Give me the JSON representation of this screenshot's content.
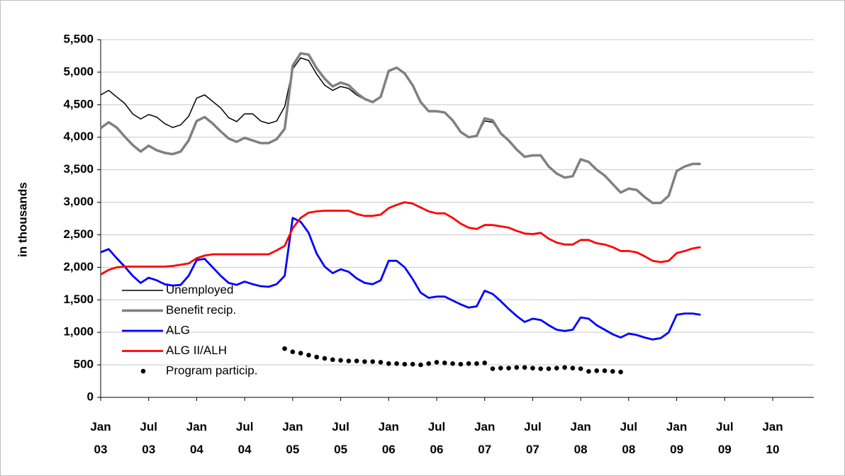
{
  "chart_data": {
    "type": "line",
    "y_label": "in thousands",
    "categories": [
      "Jan 03",
      null,
      null,
      null,
      null,
      null,
      "Jul 03",
      null,
      null,
      null,
      null,
      null,
      "Jan 04",
      null,
      null,
      null,
      null,
      null,
      "Jul 04",
      null,
      null,
      null,
      null,
      null,
      "Jan 05",
      null,
      null,
      null,
      null,
      null,
      "Jul 05",
      null,
      null,
      null,
      null,
      null,
      "Jan 06",
      null,
      null,
      null,
      null,
      null,
      "Jul 06",
      null,
      null,
      null,
      null,
      null,
      "Jan 07",
      null,
      null,
      null,
      null,
      null,
      "Jul 07",
      null,
      null,
      null,
      null,
      null,
      "Jan 08",
      null,
      null,
      null,
      null,
      null,
      "Jul 08",
      null,
      null,
      null,
      null,
      null,
      "Jan 09",
      null,
      null,
      null,
      null,
      null,
      "Jul 09",
      null,
      null,
      null,
      null,
      null,
      "Jan 10"
    ],
    "series": [
      {
        "name": "Unemployed",
        "color": "#000000",
        "style": "line",
        "values": [
          4650,
          4720,
          4620,
          4520,
          4360,
          4280,
          4350,
          4310,
          4210,
          4150,
          4190,
          4320,
          4600,
          4650,
          4550,
          4450,
          4300,
          4240,
          4360,
          4360,
          4250,
          4210,
          4250,
          4470,
          5050,
          5220,
          5180,
          4970,
          4800,
          4720,
          4780,
          4750,
          4650,
          4580,
          4530,
          4610,
          5010,
          5060,
          4980,
          4800,
          4540,
          4400,
          4400,
          4380,
          4260,
          4080,
          4000,
          4020,
          4250,
          4230,
          4060,
          3950,
          3800,
          3690,
          3720,
          3720,
          3540,
          3440,
          3380,
          3410,
          3660,
          3620,
          3500,
          3410,
          3280,
          3150,
          3210,
          3190,
          3080,
          2990,
          2990,
          3100,
          3490,
          3550,
          3590,
          3590,
          null,
          null,
          null,
          null,
          null,
          null,
          null,
          null,
          null
        ]
      },
      {
        "name": "Benefit recip.",
        "color": "#808080",
        "style": "line",
        "values": [
          4140,
          4230,
          4150,
          4010,
          3880,
          3780,
          3870,
          3800,
          3760,
          3740,
          3780,
          3950,
          4250,
          4310,
          4210,
          4090,
          3980,
          3930,
          3990,
          3950,
          3910,
          3910,
          3970,
          4130,
          5100,
          5290,
          5270,
          5060,
          4900,
          4780,
          4840,
          4800,
          4680,
          4590,
          4540,
          4620,
          5020,
          5070,
          4980,
          4800,
          4540,
          4400,
          4400,
          4380,
          4260,
          4080,
          4000,
          4020,
          4290,
          4260,
          4060,
          3950,
          3810,
          3700,
          3720,
          3720,
          3550,
          3440,
          3380,
          3400,
          3660,
          3620,
          3500,
          3410,
          3280,
          3150,
          3210,
          3190,
          3080,
          2990,
          2990,
          3100,
          3480,
          3550,
          3590,
          3590,
          null,
          null,
          null,
          null,
          null,
          null,
          null,
          null,
          null
        ]
      },
      {
        "name": "ALG",
        "color": "#0000ff",
        "style": "line",
        "values": [
          2230,
          2280,
          2140,
          2010,
          1870,
          1760,
          1840,
          1800,
          1740,
          1720,
          1730,
          1870,
          2110,
          2130,
          2000,
          1870,
          1760,
          1730,
          1780,
          1740,
          1710,
          1700,
          1740,
          1870,
          2760,
          2700,
          2530,
          2210,
          2010,
          1910,
          1970,
          1930,
          1830,
          1760,
          1740,
          1800,
          2100,
          2100,
          2000,
          1820,
          1610,
          1530,
          1550,
          1550,
          1490,
          1430,
          1380,
          1400,
          1640,
          1590,
          1480,
          1360,
          1250,
          1160,
          1210,
          1190,
          1110,
          1040,
          1020,
          1040,
          1230,
          1210,
          1110,
          1040,
          970,
          920,
          980,
          960,
          920,
          890,
          910,
          1000,
          1270,
          1290,
          1290,
          1270,
          null,
          null,
          null,
          null,
          null,
          null,
          null,
          null,
          null
        ]
      },
      {
        "name": "ALG II/ALH",
        "color": "#ff0000",
        "style": "line",
        "values": [
          1890,
          1960,
          2000,
          2010,
          2010,
          2010,
          2010,
          2010,
          2010,
          2020,
          2040,
          2060,
          2140,
          2180,
          2200,
          2200,
          2200,
          2200,
          2200,
          2200,
          2200,
          2200,
          2260,
          2330,
          2600,
          2760,
          2840,
          2860,
          2870,
          2870,
          2870,
          2870,
          2820,
          2790,
          2790,
          2810,
          2910,
          2960,
          3000,
          2980,
          2920,
          2860,
          2830,
          2830,
          2760,
          2670,
          2610,
          2590,
          2650,
          2650,
          2630,
          2610,
          2560,
          2520,
          2510,
          2530,
          2440,
          2380,
          2350,
          2350,
          2420,
          2420,
          2370,
          2350,
          2310,
          2250,
          2250,
          2230,
          2170,
          2100,
          2080,
          2100,
          2220,
          2250,
          2290,
          2310,
          null,
          null,
          null,
          null,
          null,
          null,
          null,
          null,
          null
        ]
      },
      {
        "name": "Program particip.",
        "color": "#000000",
        "style": "dots",
        "values": [
          null,
          null,
          null,
          null,
          null,
          null,
          null,
          null,
          null,
          null,
          null,
          null,
          null,
          null,
          null,
          null,
          null,
          null,
          null,
          null,
          null,
          null,
          null,
          750,
          700,
          680,
          650,
          620,
          600,
          580,
          570,
          560,
          560,
          550,
          550,
          540,
          520,
          520,
          510,
          510,
          500,
          520,
          540,
          530,
          520,
          510,
          520,
          520,
          530,
          440,
          450,
          450,
          460,
          460,
          450,
          440,
          440,
          450,
          460,
          450,
          440,
          400,
          410,
          410,
          400,
          390,
          null,
          null,
          null,
          null,
          null,
          null,
          null,
          null,
          null,
          null,
          null,
          null,
          null,
          null,
          null,
          null,
          null,
          null,
          null
        ]
      }
    ],
    "ylim": [
      0,
      5500
    ],
    "yticks": [
      0,
      500,
      {
        "value": 1000,
        "label": "1,000"
      },
      {
        "value": 1500,
        "label": "1,500"
      },
      {
        "value": 2000,
        "label": "2,000"
      },
      {
        "value": 2500,
        "label": "2,500"
      },
      {
        "value": 3000,
        "label": "3,000"
      },
      {
        "value": 3500,
        "label": "3,500"
      },
      {
        "value": 4000,
        "label": "4,000"
      },
      {
        "value": 4500,
        "label": "4,500"
      },
      {
        "value": 5000,
        "label": "5,000"
      },
      {
        "value": 5500,
        "label": "5,500"
      }
    ],
    "grid": true,
    "legend": "lower-left"
  }
}
